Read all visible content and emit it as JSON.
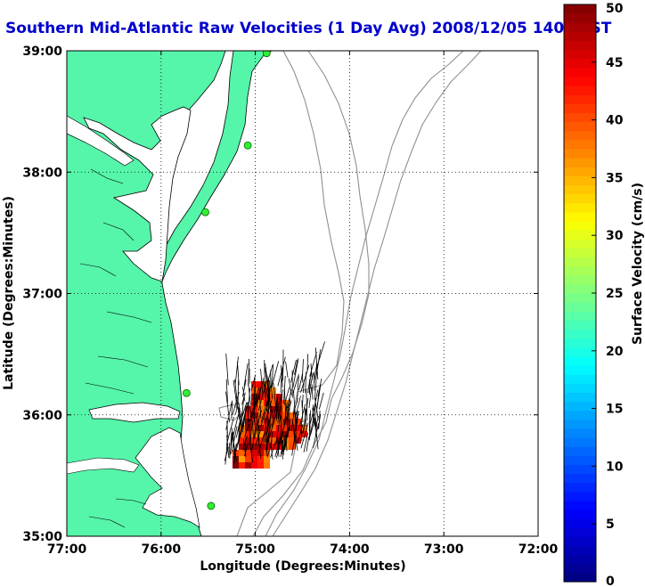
{
  "title": "Southern Mid-Atlantic Raw Velocities (1 Day Avg) 2008/12/05 1400 EST",
  "map": {
    "xlabel": "Longitude (Degrees:Minutes)",
    "ylabel": "Latitude (Degrees:Minutes)",
    "lon_range": [
      -77,
      -72
    ],
    "lat_range": [
      35,
      39
    ],
    "lon_ticks": [
      {
        "value": -77,
        "label": "77:00"
      },
      {
        "value": -76,
        "label": "76:00"
      },
      {
        "value": -75,
        "label": "75:00"
      },
      {
        "value": -74,
        "label": "74:00"
      },
      {
        "value": -73,
        "label": "73:00"
      },
      {
        "value": -72,
        "label": "72:00"
      }
    ],
    "lat_ticks": [
      {
        "value": 39,
        "label": "39:00"
      },
      {
        "value": 38,
        "label": "38:00"
      },
      {
        "value": 37,
        "label": "37:00"
      },
      {
        "value": 36,
        "label": "36:00"
      },
      {
        "value": 35,
        "label": "35:00"
      }
    ],
    "grid": "dotted",
    "land_color": "#55f5aa",
    "coast_color": "#000000",
    "isobath_color": "#909090",
    "stations": [
      {
        "lon": -74.88,
        "lat": 38.98
      },
      {
        "lon": -75.08,
        "lat": 38.22
      },
      {
        "lon": -75.53,
        "lat": 37.67
      },
      {
        "lon": -75.73,
        "lat": 36.18
      },
      {
        "lon": -75.47,
        "lat": 35.25
      }
    ]
  },
  "colorbar": {
    "label": "Surface Velocity (cm/s)",
    "min": 0,
    "max": 50,
    "ticks": [
      "0",
      "5",
      "10",
      "15",
      "20",
      "25",
      "30",
      "35",
      "40",
      "45",
      "50"
    ],
    "colormap": "jet"
  }
}
